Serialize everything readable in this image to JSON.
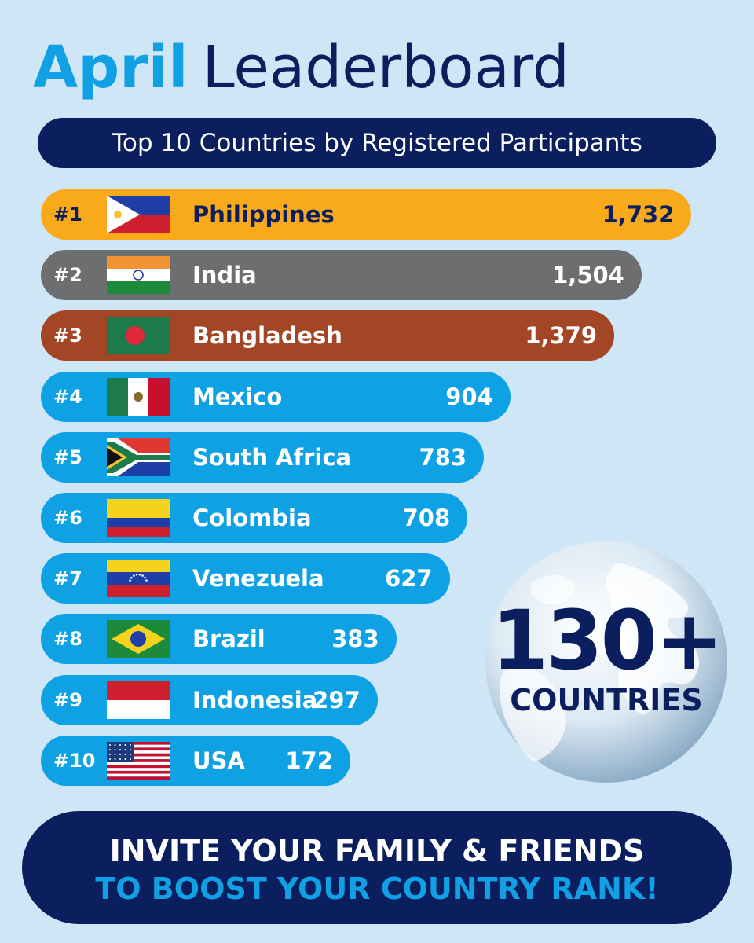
{
  "title": {
    "part1": "April",
    "part2": "Leaderboard"
  },
  "subtitle": "Top 10 Countries by Registered Participants",
  "chart_data": {
    "type": "bar",
    "orientation": "horizontal",
    "title": "Top 10 Countries by Registered Participants",
    "ranks": [
      "#1",
      "#2",
      "#3",
      "#4",
      "#5",
      "#6",
      "#7",
      "#8",
      "#9",
      "#10"
    ],
    "categories": [
      "Philippines",
      "India",
      "Bangladesh",
      "Mexico",
      "South Africa",
      "Colombia",
      "Venezuela",
      "Brazil",
      "Indonesia",
      "USA"
    ],
    "values": [
      1732,
      1504,
      1379,
      904,
      783,
      708,
      627,
      383,
      297,
      172
    ],
    "value_labels": [
      "1,732",
      "1,504",
      "1,379",
      "904",
      "783",
      "708",
      "627",
      "383",
      "297",
      "172"
    ],
    "bar_colors": [
      "#f9aa1b",
      "#6d6e70",
      "#a24626",
      "#0ea2e5",
      "#0ea2e5",
      "#0ea2e5",
      "#0ea2e5",
      "#0ea2e5",
      "#0ea2e5",
      "#0ea2e5"
    ],
    "name_colors": [
      "#0b1f5e",
      "#ffffff",
      "#ffffff",
      "#ffffff",
      "#ffffff",
      "#ffffff",
      "#ffffff",
      "#ffffff",
      "#ffffff",
      "#ffffff"
    ],
    "value_colors": [
      "#0b1f5e",
      "#ffffff",
      "#ffffff",
      "#ffffff",
      "#ffffff",
      "#ffffff",
      "#ffffff",
      "#ffffff",
      "#ffffff",
      "#ffffff"
    ],
    "flag_icons": [
      "philippines-flag-icon",
      "india-flag-icon",
      "bangladesh-flag-icon",
      "mexico-flag-icon",
      "south-africa-flag-icon",
      "colombia-flag-icon",
      "venezuela-flag-icon",
      "brazil-flag-icon",
      "indonesia-flag-icon",
      "usa-flag-icon"
    ],
    "grid": false,
    "legend": "none"
  },
  "globe": {
    "number": "130+",
    "label": "COUNTRIES",
    "icon": "globe-icon"
  },
  "cta": {
    "line1": "INVITE YOUR FAMILY & FRIENDS",
    "line2": "TO BOOST YOUR COUNTRY RANK!"
  },
  "colors": {
    "background": "#cfe6f7",
    "navy": "#0b1f5e",
    "accent_blue": "#12a0e4"
  }
}
